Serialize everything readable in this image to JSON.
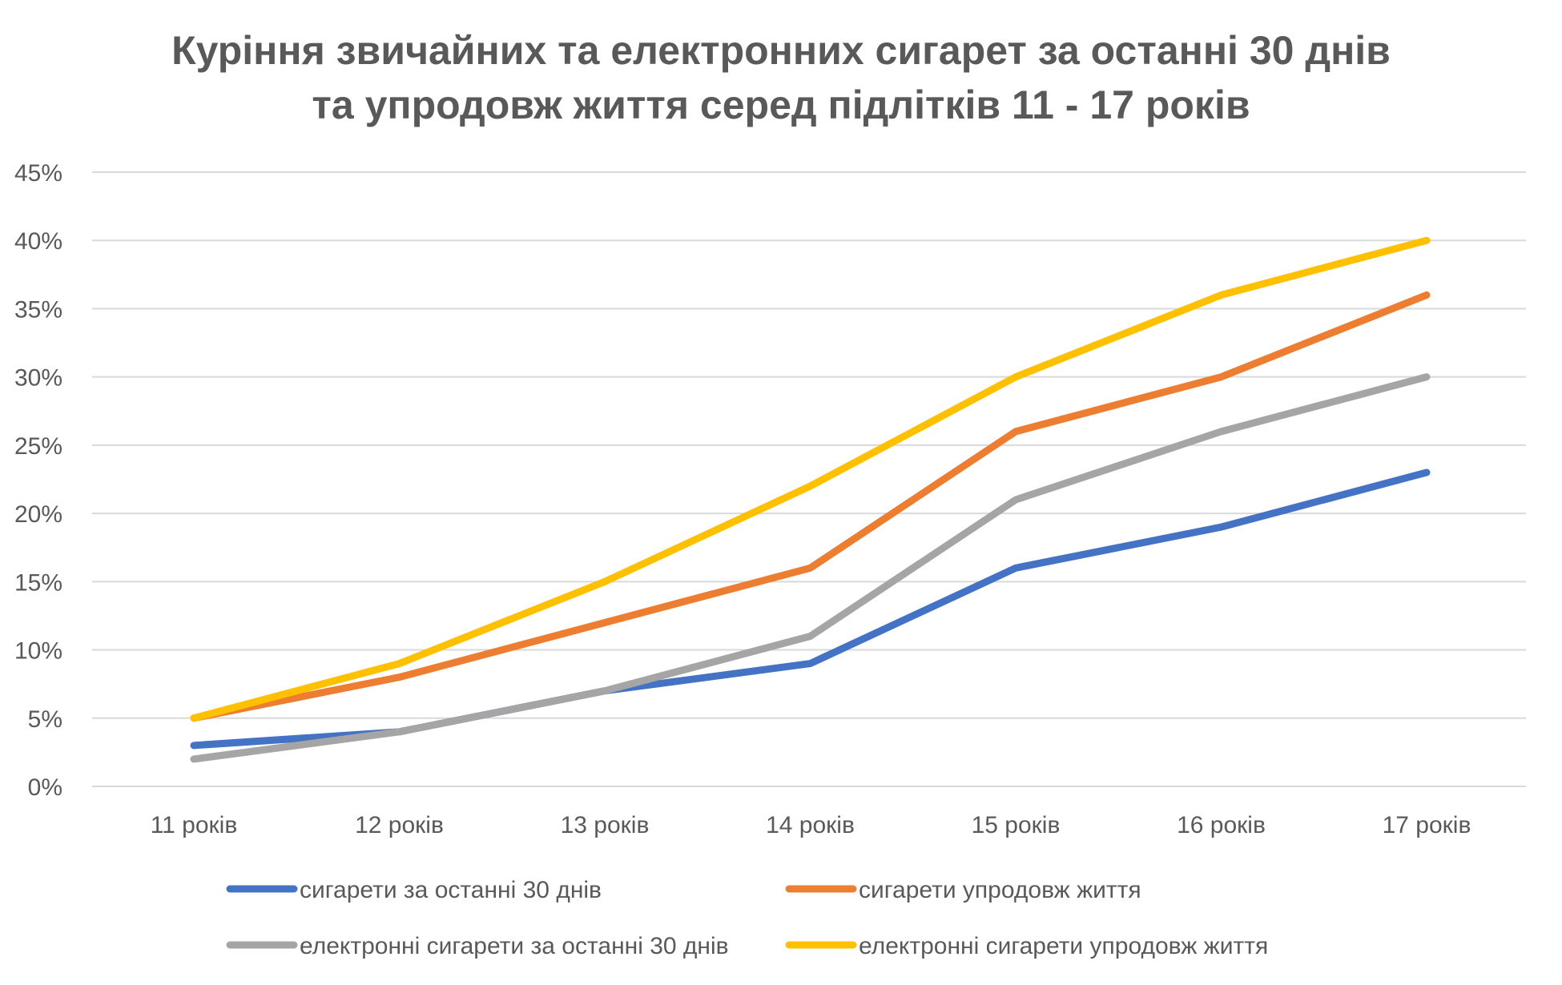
{
  "chart_data": {
    "type": "line",
    "title_lines": [
      "Куріння звичайних та електронних сигарет за останні 30 днів",
      "та упродовж життя серед підлітків 11 - 17 років"
    ],
    "categories": [
      "11 років",
      "12 років",
      "13 років",
      "14 років",
      "15 років",
      "16 років",
      "17 років"
    ],
    "ylim": [
      0,
      45
    ],
    "yticks": [
      0,
      5,
      10,
      15,
      20,
      25,
      30,
      35,
      40,
      45
    ],
    "ytick_labels": [
      "0%",
      "5%",
      "10%",
      "15%",
      "20%",
      "25%",
      "30%",
      "35%",
      "40%",
      "45%"
    ],
    "grid": true,
    "legend_position": "bottom",
    "series": [
      {
        "name": "сигарети за останні 30 днів",
        "color": "#4472c4",
        "values": [
          3,
          4,
          7,
          9,
          16,
          19,
          23
        ]
      },
      {
        "name": "сигарети упродовж життя",
        "color": "#ed7d31",
        "values": [
          5,
          8,
          12,
          16,
          26,
          30,
          36
        ]
      },
      {
        "name": "електронні сигарети за останні 30 днів",
        "color": "#a5a5a5",
        "values": [
          2,
          4,
          7,
          11,
          21,
          26,
          30
        ]
      },
      {
        "name": "електронні сигарети упродовж життя",
        "color": "#ffc000",
        "values": [
          5,
          9,
          15,
          22,
          30,
          36,
          40
        ]
      }
    ]
  }
}
